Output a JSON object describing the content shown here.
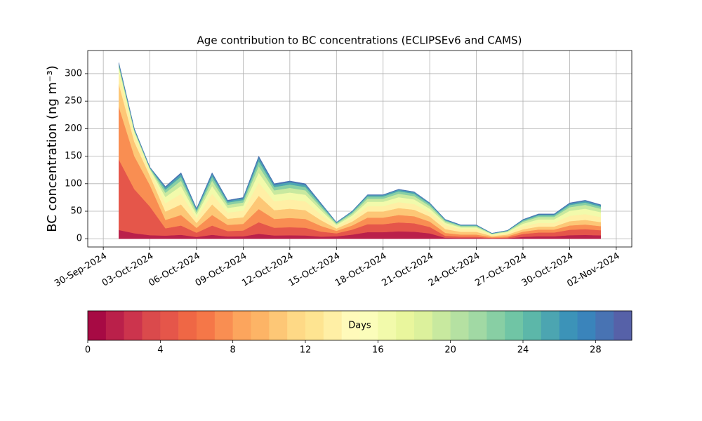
{
  "chart_data": {
    "type": "stacked_area",
    "title": "Age contribution to BC concentrations (ECLIPSEv6 and CAMS)",
    "y_label": "BC concentration (ng m⁻³)",
    "x": [
      "2024-10-01",
      "2024-10-02",
      "2024-10-03",
      "2024-10-04",
      "2024-10-05",
      "2024-10-06",
      "2024-10-07",
      "2024-10-08",
      "2024-10-09",
      "2024-10-10",
      "2024-10-11",
      "2024-10-12",
      "2024-10-13",
      "2024-10-14",
      "2024-10-15",
      "2024-10-16",
      "2024-10-17",
      "2024-10-18",
      "2024-10-19",
      "2024-10-20",
      "2024-10-21",
      "2024-10-22",
      "2024-10-23",
      "2024-10-24",
      "2024-10-25",
      "2024-10-26",
      "2024-10-27",
      "2024-10-28",
      "2024-10-29",
      "2024-10-30",
      "2024-10-31",
      "2024-11-01"
    ],
    "series": [
      {
        "color": "#ba204a",
        "values": [
          16,
          10,
          6.5,
          5.7,
          7.2,
          3.3,
          7.2,
          4.2,
          4.5,
          9,
          6,
          6.3,
          6,
          3.9,
          4.5,
          7.5,
          12,
          12,
          13.5,
          12.8,
          9.8,
          1.8,
          1.3,
          1.3,
          0.5,
          0.8,
          3.5,
          4.5,
          4.5,
          6.5,
          7,
          6.2
        ]
      },
      {
        "color": "#e5564a",
        "values": [
          128,
          80,
          52,
          13.3,
          16.8,
          7.7,
          16.8,
          9.8,
          10.5,
          21,
          14,
          14.7,
          14,
          9.1,
          5.4,
          9,
          14.4,
          14.4,
          16.2,
          15.3,
          11.7,
          3.5,
          2.5,
          2.5,
          1,
          1.5,
          5.3,
          6.8,
          6.8,
          9.8,
          10.5,
          9.3
        ]
      },
      {
        "color": "#f98e52",
        "values": [
          96,
          60,
          39,
          15.2,
          19.2,
          8.8,
          19.2,
          11.2,
          12,
          24,
          16,
          16.8,
          16,
          10.4,
          4.5,
          7.5,
          12,
          12,
          13.5,
          12.8,
          9.8,
          5.3,
          3.8,
          3.8,
          1.5,
          2.3,
          4.2,
          5.4,
          5.4,
          7.8,
          8.4,
          7.4
        ]
      },
      {
        "color": "#fdc776",
        "values": [
          41.6,
          26,
          16.9,
          15.2,
          19.2,
          8.8,
          19.2,
          11.2,
          12,
          24,
          16,
          16.8,
          16,
          10.4,
          4.2,
          7,
          11.2,
          11.2,
          12.6,
          11.9,
          9.1,
          7,
          5,
          5,
          2,
          3,
          4.2,
          5.4,
          5.4,
          7.8,
          8.4,
          7.4
        ]
      },
      {
        "color": "#ffefa5",
        "values": [
          19.2,
          12,
          7.8,
          15.2,
          19.2,
          8.8,
          19.2,
          11.2,
          12,
          24,
          16,
          16.8,
          16,
          10.4,
          3.6,
          6,
          9.6,
          9.6,
          10.8,
          10.2,
          7.8,
          7,
          5,
          5,
          2,
          3,
          5.3,
          6.8,
          6.8,
          9.8,
          10.5,
          9.3
        ]
      },
      {
        "color": "#f2faab",
        "values": [
          9.6,
          6,
          3.9,
          11.4,
          14.4,
          6.6,
          14.4,
          8.4,
          9,
          18,
          12,
          12.6,
          12,
          7.8,
          3,
          5,
          8,
          8,
          9,
          8.5,
          6.5,
          4.2,
          3,
          3,
          1.2,
          1.8,
          4.9,
          6.3,
          6.3,
          9.1,
          9.8,
          8.7
        ]
      },
      {
        "color": "#c8e99f",
        "values": [
          3.2,
          2,
          1.3,
          7.6,
          9.6,
          4.4,
          9.6,
          5.6,
          6,
          12,
          8,
          8.4,
          8,
          5.2,
          2.1,
          3.5,
          5.6,
          5.6,
          6.3,
          6,
          4.6,
          2.8,
          2,
          2,
          0.8,
          1.2,
          3.5,
          4.5,
          4.5,
          6.5,
          7,
          6.2
        ]
      },
      {
        "color": "#88cfa4",
        "values": [
          3.2,
          2,
          1.3,
          5.7,
          7.2,
          3.3,
          7.2,
          4.2,
          4.5,
          9,
          6,
          6.3,
          6,
          3.9,
          1.5,
          2.5,
          4,
          4,
          4.5,
          4.3,
          3.3,
          1.8,
          1.3,
          1.3,
          0.5,
          0.8,
          2.1,
          2.7,
          2.7,
          3.9,
          4.2,
          3.7
        ]
      },
      {
        "color": "#4ca5b1",
        "values": [
          1.6,
          1,
          0.7,
          3.8,
          4.8,
          2.2,
          4.8,
          2.8,
          3,
          6,
          4,
          4.2,
          4,
          2.6,
          0.9,
          1.5,
          2.4,
          2.4,
          2.7,
          2.6,
          2,
          1.1,
          0.8,
          0.8,
          0.3,
          0.5,
          1.4,
          1.8,
          1.8,
          2.6,
          2.8,
          2.5
        ]
      },
      {
        "color": "#4873b3",
        "values": [
          1.6,
          1,
          0.7,
          1.9,
          2.4,
          1.1,
          2.4,
          1.4,
          1.5,
          3,
          2,
          2.1,
          2,
          1.3,
          0.3,
          0.5,
          0.8,
          0.8,
          0.9,
          0.9,
          0.7,
          0.7,
          0.5,
          0.5,
          0.2,
          0.3,
          0.7,
          0.9,
          0.9,
          1.3,
          1.4,
          1.2
        ]
      }
    ],
    "xlim": [
      "2024-09-29",
      "2024-11-03"
    ],
    "xticks": [
      {
        "value": "2024-09-30",
        "label": "30-Sep-2024"
      },
      {
        "value": "2024-10-03",
        "label": "03-Oct-2024"
      },
      {
        "value": "2024-10-06",
        "label": "06-Oct-2024"
      },
      {
        "value": "2024-10-09",
        "label": "09-Oct-2024"
      },
      {
        "value": "2024-10-12",
        "label": "12-Oct-2024"
      },
      {
        "value": "2024-10-15",
        "label": "15-Oct-2024"
      },
      {
        "value": "2024-10-18",
        "label": "18-Oct-2024"
      },
      {
        "value": "2024-10-21",
        "label": "21-Oct-2024"
      },
      {
        "value": "2024-10-24",
        "label": "24-Oct-2024"
      },
      {
        "value": "2024-10-27",
        "label": "27-Oct-2024"
      },
      {
        "value": "2024-10-30",
        "label": "30-Oct-2024"
      },
      {
        "value": "2024-11-02",
        "label": "02-Nov-2024"
      }
    ],
    "ylim": [
      -15,
      342
    ],
    "yticks": [
      0,
      50,
      100,
      150,
      200,
      250,
      300
    ],
    "grid": true,
    "colorbar": {
      "label": "Days",
      "lim": [
        0,
        30
      ],
      "ticks": [
        0,
        4,
        8,
        12,
        16,
        20,
        24,
        28
      ],
      "colors": [
        "#a70a44",
        "#ba204a",
        "#cc344d",
        "#da4a4c",
        "#e5564a",
        "#ef6745",
        "#f57748",
        "#f98e52",
        "#fca55d",
        "#fdb466",
        "#fdc776",
        "#fed986",
        "#fee491",
        "#ffefa5",
        "#fffaba",
        "#fbfdba",
        "#f2faab",
        "#e9f69d",
        "#dcf19c",
        "#c8e99f",
        "#b5e1a2",
        "#a1d9a4",
        "#88cfa4",
        "#70c5a5",
        "#5cb7a9",
        "#4ca5b1",
        "#3c93b8",
        "#3a84bb",
        "#4873b3",
        "#5661a8"
      ]
    }
  }
}
